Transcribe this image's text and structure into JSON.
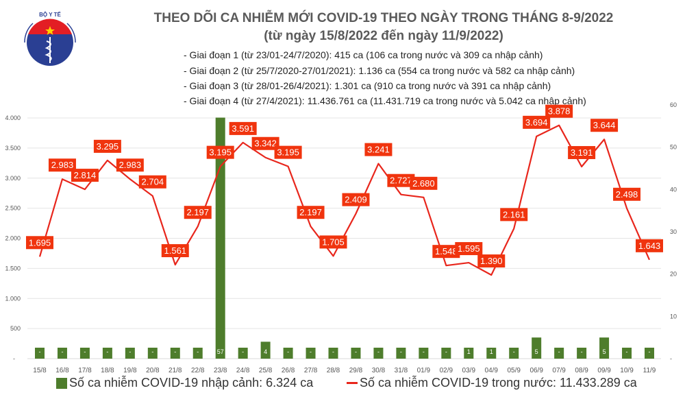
{
  "header": {
    "title": "THEO DÕI CA NHIỄM MỚI COVID-19 THEO NGÀY TRONG THÁNG 8-9/2022",
    "subtitle": "(từ ngày 15/8/2022 đến ngày 11/9/2022)",
    "notes": [
      "- Giai đoạn 1 (từ 23/01-24/7/2020): 415 ca (106 ca trong nước và 309 ca nhập cảnh)",
      "- Giai đoạn 2 (từ 25/7/2020-27/01/2021): 1.136 ca (554 ca trong nước và 582 ca nhập cảnh)",
      "- Giai đoạn 3 (từ 28/01-26/4/2021): 1.301 ca (910 ca trong nước và 391 ca nhập cảnh)",
      "- Giai đoạn 4 (từ 27/4/2021): 11.436.761 ca (11.431.719 ca trong nước và 5.042 ca nhập cảnh)"
    ],
    "logo_text": "BỘ Y TẾ · MINISTRY OF HEALTH"
  },
  "chart_data": {
    "type": "bar+line",
    "categories": [
      "15/8",
      "16/8",
      "17/8",
      "18/8",
      "19/8",
      "20/8",
      "21/8",
      "22/8",
      "23/8",
      "24/8",
      "25/8",
      "26/8",
      "27/8",
      "28/8",
      "29/8",
      "30/8",
      "31/8",
      "01/9",
      "02/9",
      "03/9",
      "04/9",
      "05/9",
      "06/9",
      "07/9",
      "08/9",
      "09/9",
      "10/9",
      "11/9"
    ],
    "series": [
      {
        "name": "Số ca nhiễm COVID-19 nhập cảnh: 6.324 ca",
        "type": "bar",
        "axis": "right",
        "color": "#4e7d2c",
        "values": [
          0,
          0,
          0,
          0,
          0,
          0,
          0,
          0,
          57,
          0,
          4,
          0,
          0,
          0,
          0,
          0,
          0,
          0,
          0,
          1,
          1,
          0,
          5,
          0,
          0,
          5,
          0,
          0
        ]
      },
      {
        "name": "Số ca nhiễm COVID-19 trong nước: 11.433.289 ca",
        "type": "line",
        "axis": "left",
        "color": "#e8261c",
        "values": [
          1695,
          2983,
          2814,
          3295,
          2983,
          2704,
          1561,
          2197,
          3195,
          3591,
          3342,
          3195,
          2197,
          1705,
          2409,
          3241,
          2727,
          2680,
          1548,
          1595,
          1390,
          2161,
          3694,
          3878,
          3191,
          3644,
          2498,
          1643
        ]
      }
    ],
    "left_axis": {
      "range": [
        0,
        4000
      ],
      "ticks": [
        "-",
        "500",
        "1.000",
        "1.500",
        "2.000",
        "2.500",
        "3.000",
        "3.500",
        "4.000"
      ]
    },
    "right_axis": {
      "range": [
        0,
        60
      ],
      "ticks": [
        "-",
        "10",
        "20",
        "30",
        "40",
        "50",
        "60"
      ]
    },
    "grid": true,
    "legend": "bottom"
  }
}
